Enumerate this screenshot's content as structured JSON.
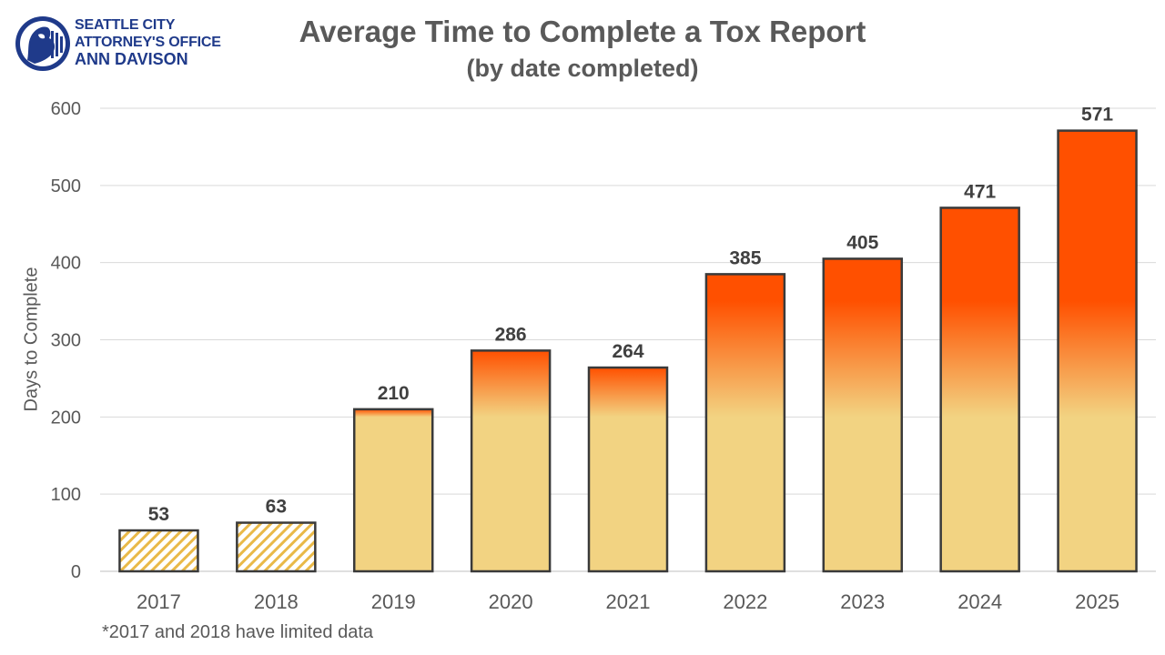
{
  "header": {
    "logo_line1": "SEATTLE CITY",
    "logo_line2": "ATTORNEY'S OFFICE",
    "logo_line3": "ANN DAVISON"
  },
  "footnote": "*2017 and 2018 have limited data",
  "colors": {
    "bar_base": "#f2d382",
    "bar_top": "#ff5000",
    "bar_outline": "#3a3a3a",
    "hatch": "#e9b948",
    "grid": "#d9d9d9",
    "text": "#595959",
    "label": "#404040",
    "logo": "#1f3a8a"
  },
  "chart_data": {
    "type": "bar",
    "title": "Average Time to Complete a Tox Report",
    "subtitle": "(by date completed)",
    "xlabel": "",
    "ylabel": "Days to Complete",
    "categories": [
      "2017",
      "2018",
      "2019",
      "2020",
      "2021",
      "2022",
      "2023",
      "2024",
      "2025"
    ],
    "values": [
      53,
      63,
      210,
      286,
      264,
      385,
      405,
      471,
      571
    ],
    "value_labels": [
      "53",
      "63",
      "210",
      "286",
      "264",
      "385",
      "405",
      "471",
      "571"
    ],
    "limited_data": [
      true,
      true,
      false,
      false,
      false,
      false,
      false,
      false,
      false
    ],
    "ylim": [
      0,
      600
    ],
    "yticks": [
      0,
      100,
      200,
      300,
      400,
      500,
      600
    ],
    "ytick_labels": [
      "0",
      "100",
      "200",
      "300",
      "400",
      "500",
      "600"
    ],
    "grid": true,
    "legend": "none"
  }
}
